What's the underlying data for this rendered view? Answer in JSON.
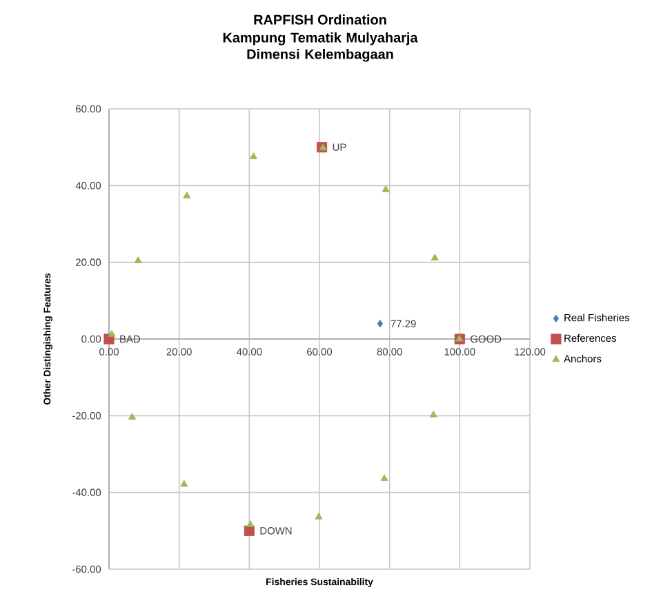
{
  "chart_data": {
    "type": "scatter",
    "title": "RAPFISH Ordination",
    "subtitle": "Kampung Tematik Mulyaharja Dimensi Kelembagaan",
    "xlabel": "Fisheries Sustainability",
    "ylabel": "Other Distingishing Features",
    "series": [
      {
        "name": "Real Fisheries",
        "color": "#4a7ebb",
        "marker": "diamond",
        "x": [
          77.29
        ],
        "values": [
          4.0
        ]
      },
      {
        "name": "References",
        "color": "#c0504d",
        "marker": "square",
        "x": [
          0,
          100,
          60.7,
          40
        ],
        "values": [
          0,
          0,
          50,
          -50
        ]
      },
      {
        "name": "Anchors",
        "color": "#9bbb59",
        "marker": "triangle",
        "x": [
          0.8,
          8.3,
          22.2,
          41.2,
          61.0,
          78.9,
          92.9,
          99.9,
          6.6,
          21.4,
          40.3,
          59.8,
          78.5,
          92.5
        ],
        "values": [
          1.2,
          20.4,
          37.3,
          47.5,
          49.8,
          38.9,
          21.1,
          0,
          -20.4,
          -37.9,
          -48.4,
          -46.4,
          -36.4,
          -19.8
        ]
      }
    ],
    "annotations": [
      {
        "text": "77.29",
        "x": 77.29,
        "y": 4.0
      },
      {
        "text": "BAD",
        "x": 0,
        "y": 0
      },
      {
        "text": "GOOD",
        "x": 100,
        "y": 0
      },
      {
        "text": "UP",
        "x": 60.7,
        "y": 50
      },
      {
        "text": "DOWN",
        "x": 40,
        "y": -50
      }
    ],
    "xlim": [
      0,
      120
    ],
    "ylim": [
      -60,
      60
    ],
    "xticks": [
      {
        "value": 0,
        "label": "0.00"
      },
      {
        "value": 20,
        "label": "20.00"
      },
      {
        "value": 40,
        "label": "40.00"
      },
      {
        "value": 60,
        "label": "60.00"
      },
      {
        "value": 80,
        "label": "80.00"
      },
      {
        "value": 100,
        "label": "100.00"
      },
      {
        "value": 120,
        "label": "120.00"
      }
    ],
    "yticks": [
      {
        "value": -60,
        "label": "-60.00"
      },
      {
        "value": -40,
        "label": "-40.00"
      },
      {
        "value": -20,
        "label": "-20.00"
      },
      {
        "value": 0,
        "label": "0.00"
      },
      {
        "value": 20,
        "label": "20.00"
      },
      {
        "value": 40,
        "label": "40.00"
      },
      {
        "value": 60,
        "label": "60.00"
      }
    ],
    "grid": true,
    "legend": "right"
  }
}
